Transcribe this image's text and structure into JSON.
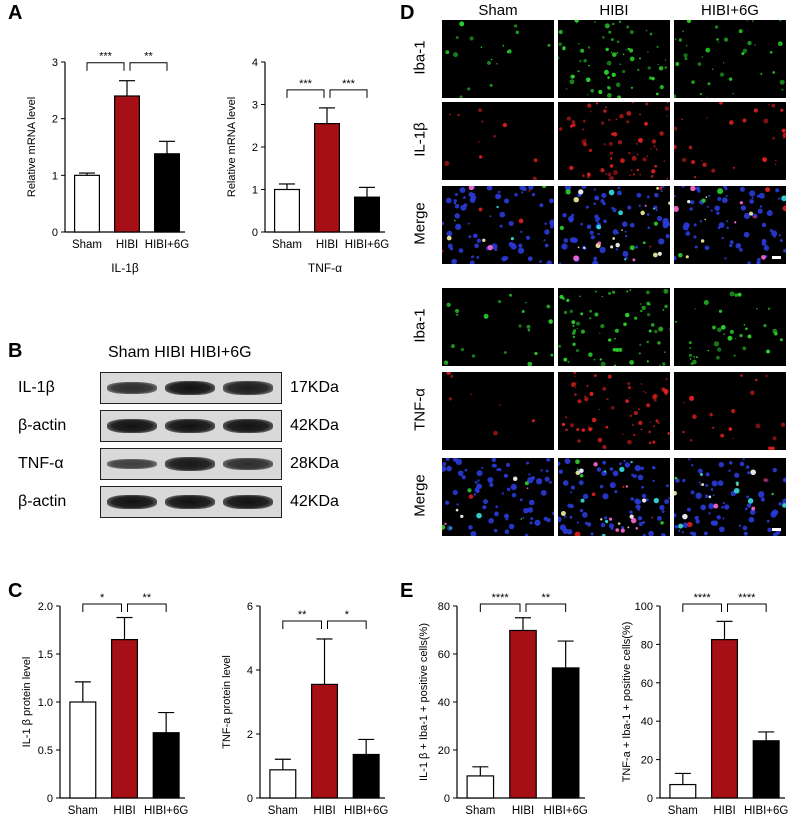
{
  "panels": {
    "A": "A",
    "B": "B",
    "C": "C",
    "D": "D",
    "E": "E"
  },
  "chart_data": [
    {
      "id": "A1",
      "type": "bar",
      "categories": [
        "Sham",
        "HIBI",
        "HIBI+6G"
      ],
      "values": [
        1.0,
        2.4,
        1.38
      ],
      "errors": [
        0.04,
        0.27,
        0.22
      ],
      "ylabel": "Relative mRNA level",
      "xlabel": "IL-1β",
      "ylim": [
        0,
        3
      ],
      "yticks": [
        "0",
        "1",
        "2",
        "3"
      ],
      "significance": [
        "***",
        "**"
      ]
    },
    {
      "id": "A2",
      "type": "bar",
      "categories": [
        "Sham",
        "HIBI",
        "HIBI+6G"
      ],
      "values": [
        1.0,
        2.55,
        0.82
      ],
      "errors": [
        0.13,
        0.37,
        0.23
      ],
      "ylabel": "Relative mRNA level",
      "xlabel": "TNF-α",
      "ylim": [
        0,
        4
      ],
      "yticks": [
        "0",
        "1",
        "2",
        "3",
        "4"
      ],
      "significance": [
        "***",
        "***"
      ]
    },
    {
      "id": "C1",
      "type": "bar",
      "categories": [
        "Sham",
        "HIBI",
        "HIBI+6G"
      ],
      "values": [
        1.0,
        1.65,
        0.68
      ],
      "errors": [
        0.21,
        0.23,
        0.21
      ],
      "ylabel": "IL-1 β protein level",
      "xlabel": "",
      "ylim": [
        0,
        2.0
      ],
      "yticks": [
        "0",
        "0.5",
        "1.0",
        "1.5",
        "2.0"
      ],
      "significance": [
        "*",
        "**"
      ]
    },
    {
      "id": "C2",
      "type": "bar",
      "categories": [
        "Sham",
        "HIBI",
        "HIBI+6G"
      ],
      "values": [
        0.88,
        3.55,
        1.36
      ],
      "errors": [
        0.33,
        1.42,
        0.47
      ],
      "ylabel": "TNF-a protein level",
      "xlabel": "",
      "ylim": [
        0,
        6
      ],
      "yticks": [
        "0",
        "2",
        "4",
        "6"
      ],
      "significance": [
        "**",
        "*"
      ]
    },
    {
      "id": "E1",
      "type": "bar",
      "categories": [
        "Sham",
        "HIBI",
        "HIBI+6G"
      ],
      "values": [
        9.2,
        69.8,
        54.2
      ],
      "errors": [
        3.8,
        5.3,
        11.2
      ],
      "ylabel": "IL-1 β + Iba-1 + positive cells(%)",
      "xlabel": "",
      "ylim": [
        0,
        80
      ],
      "yticks": [
        "0",
        "20",
        "40",
        "60",
        "80"
      ],
      "significance": [
        "****",
        "**"
      ]
    },
    {
      "id": "E2",
      "type": "bar",
      "categories": [
        "Sham",
        "HIBI",
        "HIBI+6G"
      ],
      "values": [
        7.0,
        82.5,
        29.8
      ],
      "errors": [
        5.8,
        9.5,
        4.6
      ],
      "ylabel": "TNF-a + Iba-1 + positive cells(%)",
      "xlabel": "",
      "ylim": [
        0,
        100
      ],
      "yticks": [
        "0",
        "20",
        "40",
        "60",
        "80",
        "100"
      ],
      "significance": [
        "****",
        "****"
      ]
    }
  ],
  "western": {
    "header": "Sham HIBI HIBI+6G",
    "rows": [
      {
        "label": "IL-1β",
        "kda": "17KDa",
        "intensity": [
          0.75,
          1.0,
          0.9
        ]
      },
      {
        "label": "β-actin",
        "kda": "42KDa",
        "intensity": [
          1.0,
          1.0,
          1.0
        ]
      },
      {
        "label": "TNF-α",
        "kda": "28KDa",
        "intensity": [
          0.6,
          0.95,
          0.75
        ]
      },
      {
        "label": "β-actin",
        "kda": "42KDa",
        "intensity": [
          1.0,
          1.0,
          1.0
        ]
      }
    ]
  },
  "micro": {
    "columns": [
      "Sham",
      "HIBI",
      "HIBI+6G"
    ],
    "rows": [
      "Iba-1",
      "IL-1β",
      "Merge",
      "Iba-1",
      "TNF-α",
      "Merge"
    ],
    "colors": [
      "#2bd12b",
      "#e02020",
      "merge",
      "#2bd12b",
      "#e02020",
      "merge"
    ],
    "density": [
      [
        0.25,
        1.0,
        0.55
      ],
      [
        0.15,
        1.0,
        0.4
      ],
      [
        0.4,
        1.0,
        0.6
      ],
      [
        0.3,
        1.0,
        0.55
      ],
      [
        0.1,
        0.9,
        0.3
      ],
      [
        0.4,
        1.0,
        0.6
      ]
    ]
  },
  "colors": {
    "sham": "#ffffff",
    "hibi": "#a50f15",
    "hibi6g": "#000000"
  }
}
